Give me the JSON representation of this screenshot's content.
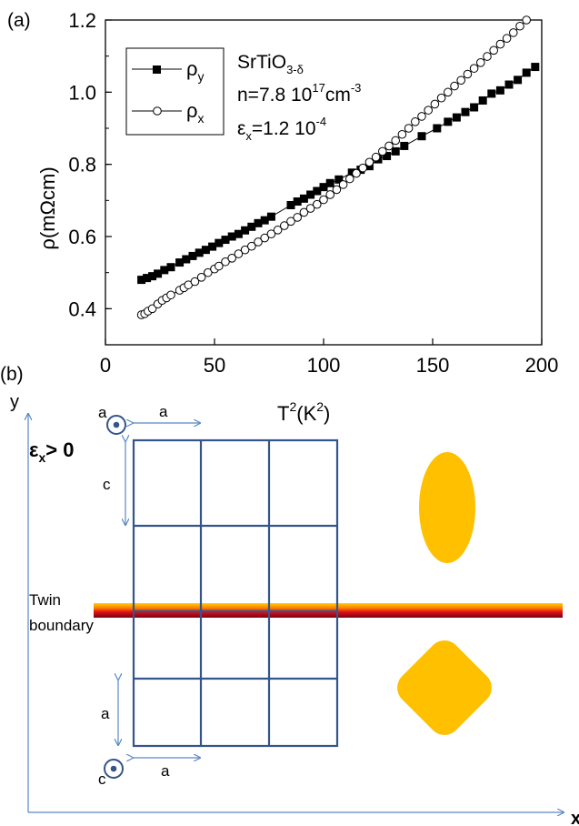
{
  "panel_a_label": "(a)",
  "panel_b_label": "(b)",
  "chart_data": {
    "type": "scatter",
    "xlabel": "T",
    "xlabel_sup1": "2",
    "xlabel_paren": "(K",
    "xlabel_sup2": "2",
    "xlabel_close": ")",
    "ylabel": "ρ(mΩcm)",
    "xlim": [
      0,
      200
    ],
    "ylim": [
      0.3,
      1.2
    ],
    "xticks": [
      "0",
      "50",
      "100",
      "150",
      "200"
    ],
    "yticks": [
      "0.4",
      "0.6",
      "0.8",
      "1.0",
      "1.2"
    ],
    "xtick_values": [
      0,
      50,
      100,
      150,
      200
    ],
    "ytick_values": [
      0.4,
      0.6,
      0.8,
      1.0,
      1.2
    ],
    "grid": false,
    "legend_position": "top-left",
    "annotations": {
      "material": "SrTiO",
      "material_sub": "3-δ",
      "density": "n=7.8 10",
      "density_sup": "17",
      "density_unit": "cm",
      "density_unit_sup": "-3",
      "strain": "ε",
      "strain_sub": "x",
      "strain_value": "=1.2 10",
      "strain_sup": "-4"
    },
    "series": [
      {
        "name": "ρ",
        "name_sub": "y",
        "marker": "filled-square",
        "color": "#000000",
        "points": [
          [
            16.5,
            0.48
          ],
          [
            19,
            0.485
          ],
          [
            21.5,
            0.49
          ],
          [
            24,
            0.497
          ],
          [
            27,
            0.507
          ],
          [
            30,
            0.515
          ],
          [
            34,
            0.528
          ],
          [
            37,
            0.537
          ],
          [
            40,
            0.546
          ],
          [
            43,
            0.555
          ],
          [
            46,
            0.563
          ],
          [
            49,
            0.572
          ],
          [
            52,
            0.582
          ],
          [
            55,
            0.591
          ],
          [
            58,
            0.6
          ],
          [
            61,
            0.607
          ],
          [
            64,
            0.617
          ],
          [
            67,
            0.627
          ],
          [
            70,
            0.637
          ],
          [
            73,
            0.645
          ],
          [
            76,
            0.655
          ],
          [
            85,
            0.687
          ],
          [
            88,
            0.697
          ],
          [
            91,
            0.705
          ],
          [
            94,
            0.716
          ],
          [
            97,
            0.726
          ],
          [
            100,
            0.737
          ],
          [
            103,
            0.748
          ],
          [
            107,
            0.758
          ],
          [
            113,
            0.777
          ],
          [
            117,
            0.785
          ],
          [
            121,
            0.795
          ],
          [
            125,
            0.814
          ],
          [
            129,
            0.823
          ],
          [
            133,
            0.836
          ],
          [
            137,
            0.851
          ],
          [
            145,
            0.878
          ],
          [
            152,
            0.9
          ],
          [
            157,
            0.918
          ],
          [
            161,
            0.93
          ],
          [
            165,
            0.945
          ],
          [
            169,
            0.958
          ],
          [
            173,
            0.977
          ],
          [
            177,
            0.996
          ],
          [
            181,
            1.005
          ],
          [
            185,
            1.021
          ],
          [
            189,
            1.034
          ],
          [
            193,
            1.054
          ],
          [
            197,
            1.07
          ]
        ]
      },
      {
        "name": "ρ",
        "name_sub": "x",
        "marker": "open-circle",
        "color": "#000000",
        "points": [
          [
            16.5,
            0.383
          ],
          [
            18,
            0.386
          ],
          [
            19.5,
            0.393
          ],
          [
            21.5,
            0.4
          ],
          [
            24,
            0.413
          ],
          [
            26,
            0.423
          ],
          [
            28,
            0.43
          ],
          [
            30,
            0.438
          ],
          [
            34,
            0.451
          ],
          [
            36,
            0.458
          ],
          [
            38,
            0.466
          ],
          [
            41,
            0.475
          ],
          [
            44,
            0.487
          ],
          [
            47,
            0.5
          ],
          [
            50,
            0.51
          ],
          [
            52,
            0.518
          ],
          [
            55,
            0.53
          ],
          [
            58,
            0.54
          ],
          [
            61,
            0.552
          ],
          [
            64,
            0.563
          ],
          [
            67,
            0.573
          ],
          [
            70,
            0.585
          ],
          [
            73,
            0.596
          ],
          [
            76,
            0.607
          ],
          [
            79,
            0.618
          ],
          [
            82,
            0.63
          ],
          [
            85,
            0.642
          ],
          [
            88,
            0.653
          ],
          [
            91,
            0.667
          ],
          [
            94,
            0.678
          ],
          [
            97,
            0.689
          ],
          [
            100,
            0.702
          ],
          [
            103,
            0.716
          ],
          [
            106,
            0.73
          ],
          [
            109,
            0.744
          ],
          [
            112,
            0.76
          ],
          [
            115,
            0.775
          ],
          [
            118,
            0.79
          ],
          [
            121,
            0.806
          ],
          [
            124,
            0.82
          ],
          [
            127,
            0.836
          ],
          [
            130,
            0.851
          ],
          [
            133,
            0.866
          ],
          [
            136,
            0.883
          ],
          [
            139,
            0.9
          ],
          [
            142,
            0.918
          ],
          [
            145,
            0.933
          ],
          [
            148,
            0.95
          ],
          [
            151,
            0.967
          ],
          [
            154,
            0.984
          ],
          [
            157,
            1.0
          ],
          [
            160,
            1.017
          ],
          [
            163,
            1.033
          ],
          [
            166,
            1.05
          ],
          [
            169,
            1.066
          ],
          [
            172,
            1.082
          ],
          [
            175,
            1.099
          ],
          [
            178,
            1.116
          ],
          [
            181,
            1.133
          ],
          [
            184,
            1.149
          ],
          [
            187,
            1.165
          ],
          [
            190,
            1.183
          ],
          [
            193,
            1.2
          ]
        ]
      }
    ]
  },
  "diagram": {
    "y_axis_label": "y",
    "x_axis_label": "x",
    "strain_label": "ε",
    "strain_label_sub": "x",
    "strain_label_rest": "> 0",
    "twin_boundary_label_1": "Twin",
    "twin_boundary_label_2": "boundary",
    "top_axis_label": "a",
    "top_width_label": "a",
    "top_height_label": "c",
    "bottom_axis_label": "c",
    "bottom_height_label": "a",
    "bottom_width_label": "a",
    "grid_color": "#34558a",
    "shape_color": "#ffc000",
    "arrow_color": "#5b87c5"
  }
}
